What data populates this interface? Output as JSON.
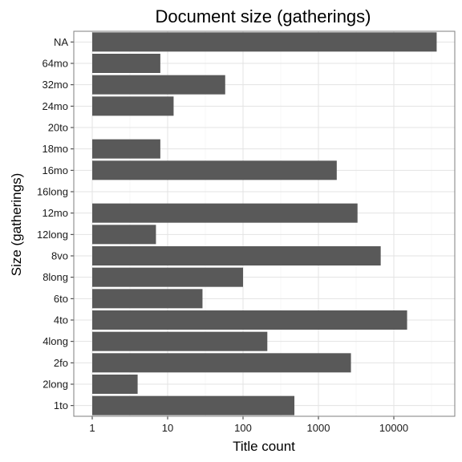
{
  "chart_data": {
    "type": "bar",
    "orientation": "horizontal",
    "title": "Document size (gatherings)",
    "xlabel": "Title count",
    "ylabel": "Size (gatherings)",
    "x_scale": "log10",
    "xlim": [
      1,
      40000
    ],
    "x_ticks": [
      "1",
      "10",
      "100",
      "1000",
      "10000"
    ],
    "grid": true,
    "bar_color": "#595959",
    "categories": [
      "1to",
      "2long",
      "2fo",
      "4long",
      "4to",
      "6to",
      "8long",
      "8vo",
      "12long",
      "12mo",
      "16long",
      "16mo",
      "18mo",
      "20to",
      "24mo",
      "32mo",
      "64mo",
      "NA"
    ],
    "values": [
      480,
      4,
      2700,
      210,
      15000,
      29,
      100,
      6700,
      7,
      3300,
      0,
      1750,
      8,
      0,
      12,
      58,
      8,
      37000
    ]
  }
}
